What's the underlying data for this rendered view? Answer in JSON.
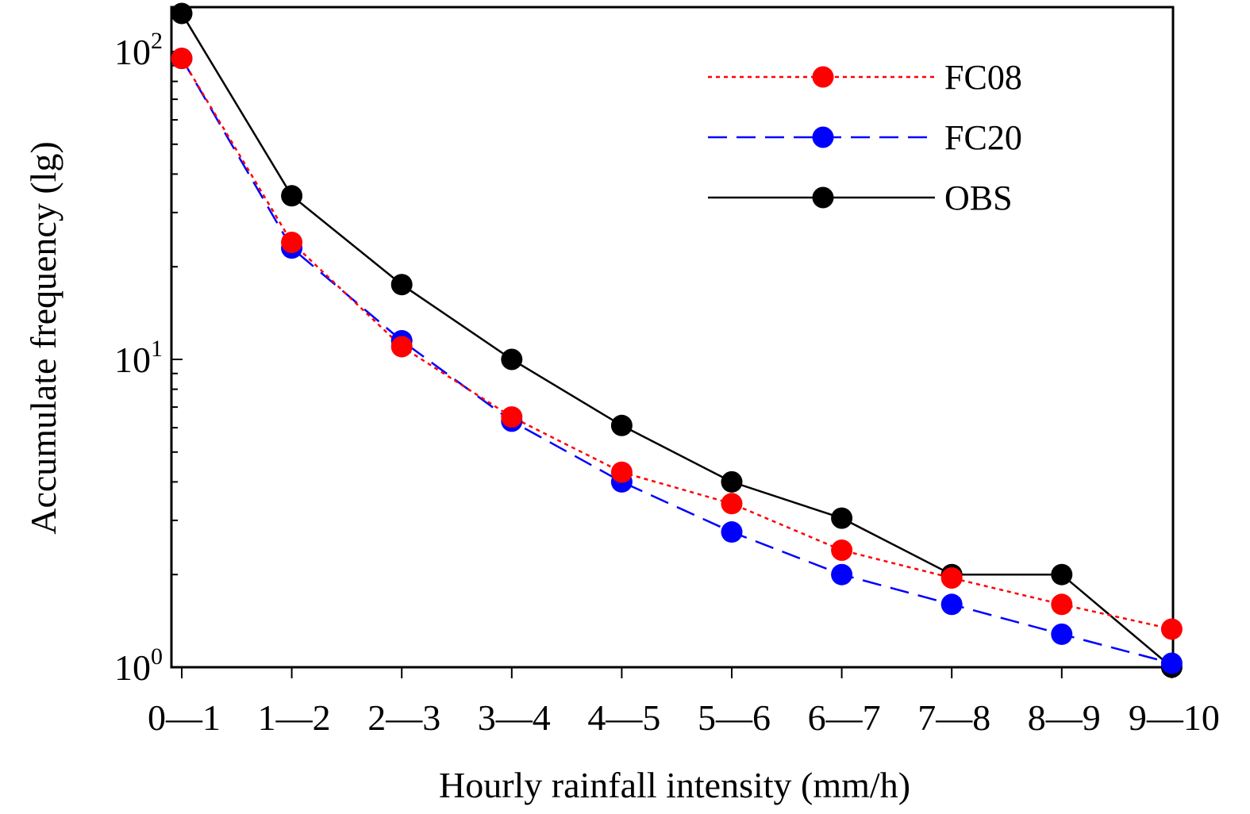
{
  "chart_data": {
    "type": "line",
    "title": "",
    "xlabel": "Hourly rainfall intensity (mm/h)",
    "ylabel": "Accumulate frequency (lg)",
    "yscale": "log",
    "ylim": [
      1,
      140
    ],
    "grid": false,
    "legend_position": "top-right",
    "categories": [
      "0—1",
      "1—2",
      "2—3",
      "3—4",
      "4—5",
      "5—6",
      "6—7",
      "7—8",
      "8—9",
      "9—10"
    ],
    "y_ticks": [
      {
        "base": "10",
        "exp": "0",
        "value": 1
      },
      {
        "base": "10",
        "exp": "1",
        "value": 10
      },
      {
        "base": "10",
        "exp": "2",
        "value": 100
      }
    ],
    "series": [
      {
        "name": "FC08",
        "color": "#ff0000",
        "line_style": "dotted",
        "values": [
          95,
          24,
          11,
          6.5,
          4.3,
          3.4,
          2.4,
          1.95,
          1.6,
          1.33
        ]
      },
      {
        "name": "FC20",
        "color": "#0000ff",
        "line_style": "dashed",
        "values": [
          95,
          23,
          11.5,
          6.3,
          4.0,
          2.75,
          2.0,
          1.6,
          1.28,
          1.03
        ]
      },
      {
        "name": "OBS",
        "color": "#000000",
        "line_style": "solid",
        "values": [
          133,
          34,
          17.5,
          10,
          6.1,
          4.0,
          3.05,
          2.0,
          2.0,
          1.0
        ]
      }
    ]
  }
}
